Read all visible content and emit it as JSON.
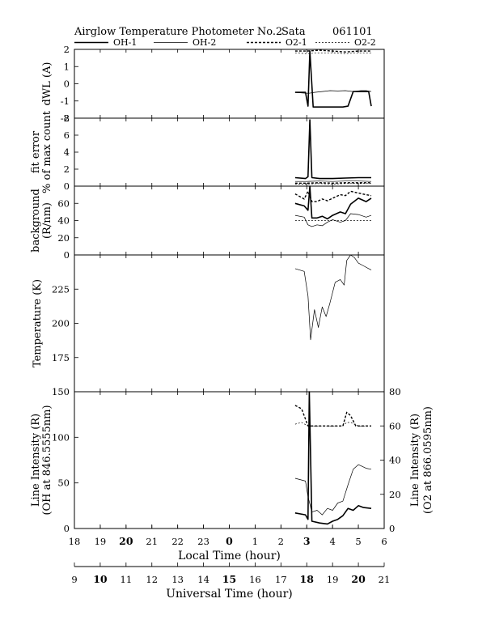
{
  "header": {
    "title": "Airglow Temperature Photometer No.2",
    "site": "Sata",
    "date": "061101"
  },
  "legend": [
    {
      "name": "OH-1",
      "style": "thick-solid"
    },
    {
      "name": "OH-2",
      "style": "thin-solid"
    },
    {
      "name": "O2-1",
      "style": "thick-dashed"
    },
    {
      "name": "O2-2",
      "style": "thin-dashed"
    }
  ],
  "x_axes": {
    "local": {
      "label": "Local Time (hour)",
      "ticks": [
        "18",
        "19",
        "20",
        "21",
        "22",
        "23",
        "0",
        "1",
        "2",
        "3",
        "4",
        "5",
        "6"
      ],
      "bold": [
        "20",
        "0",
        "3"
      ]
    },
    "universal": {
      "label": "Universal Time (hour)",
      "ticks": [
        "9",
        "10",
        "11",
        "12",
        "13",
        "14",
        "15",
        "16",
        "17",
        "18",
        "19",
        "20",
        "21"
      ],
      "bold": [
        "10",
        "15",
        "18",
        "20"
      ]
    }
  },
  "chart_data": [
    {
      "id": "dwl",
      "type": "line",
      "ylabel": [
        "dWL (A)"
      ],
      "ylim": [
        -2,
        2
      ],
      "yticks": [
        "2",
        "1",
        "0",
        "-1",
        "-2"
      ],
      "x_unit": "local hour (continuous, 18 to 30)",
      "series": [
        {
          "name": "OH-1",
          "x": [
            26.55,
            26.95,
            27.05,
            27.12,
            27.25,
            27.5,
            27.8,
            28.1,
            28.4,
            28.6,
            28.8,
            29.0,
            29.2,
            29.4,
            29.5
          ],
          "y": [
            -0.5,
            -0.5,
            -1.3,
            1.9,
            -1.35,
            -1.35,
            -1.35,
            -1.35,
            -1.35,
            -1.3,
            -0.45,
            -0.45,
            -0.45,
            -0.45,
            -1.3
          ]
        },
        {
          "name": "OH-2",
          "x": [
            26.55,
            26.95,
            27.1,
            27.3,
            27.6,
            27.9,
            28.2,
            28.5,
            28.8,
            29.1,
            29.3,
            29.5
          ],
          "y": [
            -0.5,
            -0.55,
            -0.55,
            -0.5,
            -0.45,
            -0.4,
            -0.42,
            -0.4,
            -0.45,
            -0.4,
            -0.4,
            -0.45
          ]
        },
        {
          "name": "O2-1",
          "x": [
            26.55,
            27.0,
            27.5,
            28.0,
            28.5,
            29.0,
            29.5
          ],
          "y": [
            1.9,
            1.9,
            1.95,
            1.9,
            1.85,
            1.9,
            1.9
          ]
        },
        {
          "name": "O2-2",
          "x": [
            26.55,
            27.0,
            27.5,
            28.0,
            28.5,
            29.0,
            29.5
          ],
          "y": [
            1.8,
            1.75,
            1.8,
            1.8,
            1.75,
            1.8,
            1.8
          ]
        }
      ]
    },
    {
      "id": "fit-error",
      "type": "line",
      "ylabel": [
        "fit error",
        "% of max count"
      ],
      "ylim": [
        0,
        8
      ],
      "yticks": [
        "8",
        "6",
        "4",
        "2",
        "0"
      ],
      "series": [
        {
          "name": "OH-1",
          "x": [
            26.55,
            26.95,
            27.05,
            27.12,
            27.2,
            27.5,
            28.0,
            28.5,
            29.0,
            29.5
          ],
          "y": [
            1.0,
            0.9,
            1.1,
            7.8,
            1.0,
            0.9,
            0.9,
            0.95,
            1.0,
            1.0
          ]
        },
        {
          "name": "OH-2",
          "x": [
            26.55,
            27.0,
            27.5,
            28.0,
            28.5,
            29.0,
            29.5
          ],
          "y": [
            0.55,
            0.55,
            0.6,
            0.55,
            0.6,
            0.6,
            0.55
          ]
        },
        {
          "name": "O2-1",
          "x": [
            26.55,
            27.0,
            27.5,
            28.0,
            28.5,
            29.0,
            29.5
          ],
          "y": [
            0.35,
            0.35,
            0.4,
            0.35,
            0.4,
            0.4,
            0.4
          ]
        },
        {
          "name": "O2-2",
          "x": [
            26.55,
            27.0,
            27.5,
            28.0,
            28.5,
            29.0,
            29.5
          ],
          "y": [
            0.25,
            0.25,
            0.3,
            0.25,
            0.3,
            0.3,
            0.3
          ]
        }
      ]
    },
    {
      "id": "background",
      "type": "line",
      "ylabel": [
        "background",
        "(R/nm)"
      ],
      "ylim": [
        0,
        80
      ],
      "yticks": [
        "60",
        "40",
        "20",
        "0"
      ],
      "series": [
        {
          "name": "OH-1",
          "x": [
            26.55,
            26.9,
            27.05,
            27.12,
            27.2,
            27.4,
            27.6,
            27.8,
            28.0,
            28.3,
            28.5,
            28.7,
            29.0,
            29.3,
            29.5
          ],
          "y": [
            60,
            57,
            52,
            80,
            43,
            43,
            45,
            42,
            46,
            50,
            48,
            59,
            66,
            62,
            66
          ]
        },
        {
          "name": "OH-2",
          "x": [
            26.55,
            26.9,
            27.05,
            27.2,
            27.4,
            27.6,
            27.8,
            28.0,
            28.3,
            28.5,
            28.7,
            29.0,
            29.3,
            29.5
          ],
          "y": [
            46,
            44,
            35,
            33,
            35,
            34,
            38,
            41,
            38,
            40,
            48,
            47,
            44,
            46
          ]
        },
        {
          "name": "O2-1",
          "x": [
            26.55,
            26.9,
            27.05,
            27.2,
            27.4,
            27.6,
            27.8,
            28.0,
            28.3,
            28.5,
            28.7,
            29.0,
            29.3,
            29.5
          ],
          "y": [
            71,
            65,
            74,
            62,
            62,
            65,
            63,
            66,
            70,
            69,
            74,
            72,
            70,
            69
          ]
        },
        {
          "name": "O2-2",
          "x": [
            26.55,
            27.0,
            27.5,
            28.0,
            28.5,
            29.0,
            29.5
          ],
          "y": [
            40,
            40,
            40,
            40,
            40,
            40,
            40
          ]
        }
      ]
    },
    {
      "id": "temperature",
      "type": "line",
      "ylabel": [
        "Temperature (K)"
      ],
      "ylim": [
        150,
        250
      ],
      "yticks": [
        "225",
        "200",
        "175"
      ],
      "series": [
        {
          "name": "OH-2",
          "x": [
            26.55,
            26.9,
            27.05,
            27.15,
            27.3,
            27.45,
            27.6,
            27.75,
            27.9,
            28.1,
            28.3,
            28.45,
            28.55,
            28.7,
            28.85,
            29.0,
            29.2,
            29.4,
            29.5
          ],
          "y": [
            240,
            238,
            220,
            188,
            210,
            197,
            212,
            205,
            215,
            230,
            232,
            228,
            246,
            250,
            248,
            244,
            242,
            240,
            239
          ]
        }
      ]
    },
    {
      "id": "line-intensity",
      "type": "line",
      "ylabel": [
        "Line Intensity (R)",
        "(OH at 846.5555nm)"
      ],
      "ylabel_right": [
        "Line Intensity (R)",
        "(O2 at 866.0595nm)"
      ],
      "ylim": [
        0,
        150
      ],
      "ylim_right": [
        0,
        80
      ],
      "yticks": [
        "150",
        "100",
        "50",
        "0"
      ],
      "yticks_right": [
        "80",
        "60",
        "40",
        "20",
        "0"
      ],
      "series": [
        {
          "name": "OH-1",
          "x": [
            26.55,
            26.95,
            27.05,
            27.1,
            27.2,
            27.5,
            27.8,
            28.0,
            28.2,
            28.4,
            28.6,
            28.8,
            29.0,
            29.2,
            29.5
          ],
          "y": [
            17,
            15,
            10,
            150,
            8,
            6,
            5,
            8,
            10,
            14,
            22,
            20,
            25,
            23,
            22
          ]
        },
        {
          "name": "OH-2",
          "x": [
            26.55,
            26.95,
            27.05,
            27.2,
            27.4,
            27.6,
            27.8,
            28.0,
            28.2,
            28.4,
            28.6,
            28.8,
            29.0,
            29.3,
            29.5
          ],
          "y": [
            55,
            52,
            35,
            18,
            20,
            15,
            22,
            20,
            28,
            30,
            48,
            65,
            70,
            66,
            65
          ]
        },
        {
          "name": "O2-1",
          "axis": "right",
          "x": [
            26.55,
            26.8,
            27.05,
            27.15,
            27.5,
            28.0,
            28.4,
            28.55,
            28.7,
            28.9,
            29.2,
            29.5
          ],
          "y": [
            72,
            70,
            60,
            60,
            60,
            60,
            60,
            68,
            66,
            60,
            60,
            60
          ]
        },
        {
          "name": "O2-2",
          "axis": "right",
          "x": [
            26.55,
            26.8,
            27.05,
            27.15,
            27.5,
            28.0,
            28.4,
            28.55,
            28.7,
            29.0,
            29.3,
            29.5
          ],
          "y": [
            61,
            62,
            60,
            60,
            60,
            60,
            60,
            62,
            62,
            60,
            60,
            60
          ]
        }
      ]
    }
  ]
}
